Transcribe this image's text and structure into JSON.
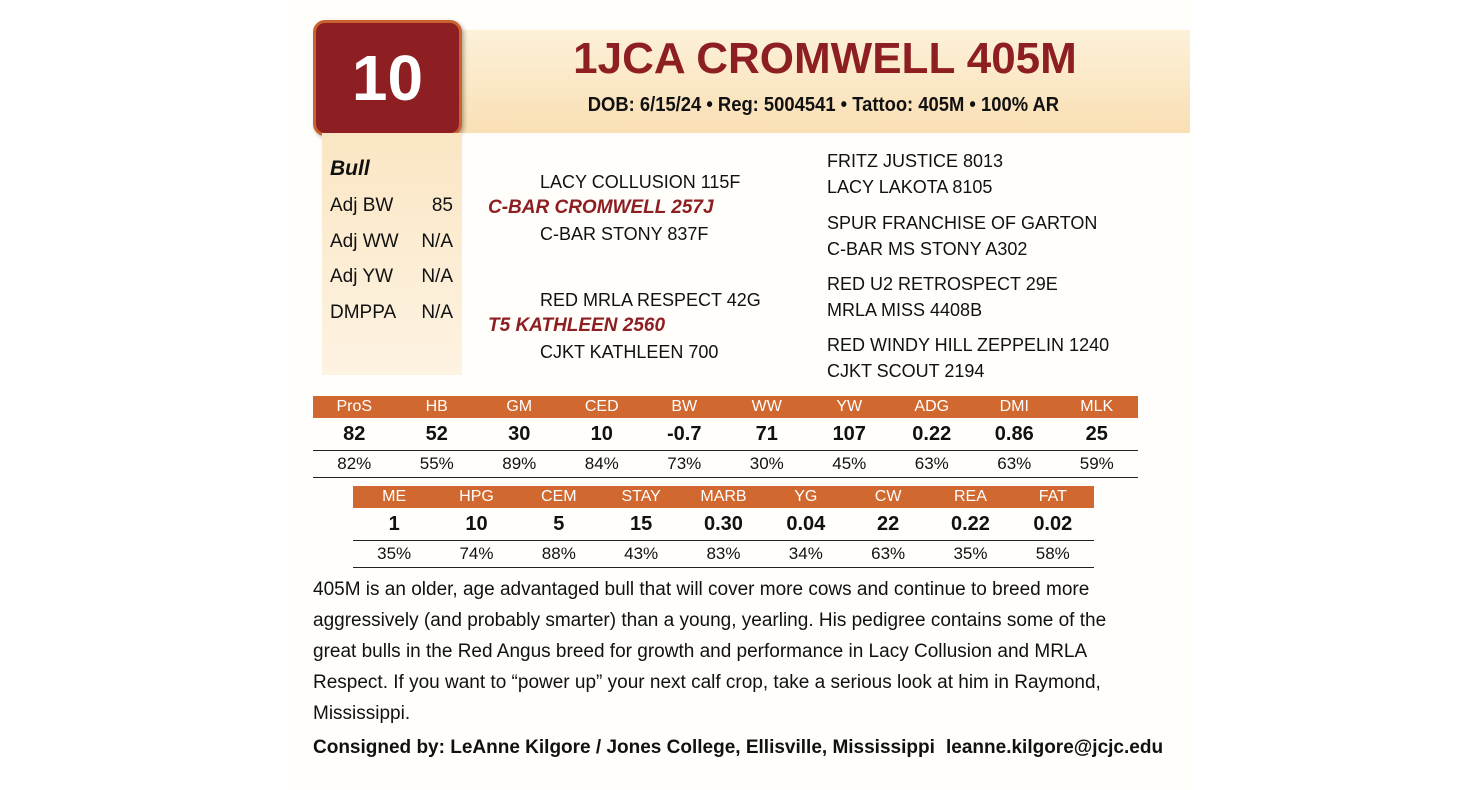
{
  "lot": "10",
  "name": "1JCA CROMWELL 405M",
  "info": "DOB: 6/15/24 • Reg: 5004541 • Tattoo: 405M • 100% AR",
  "stats": {
    "title": "Bull",
    "rows": [
      [
        "Adj BW",
        "85"
      ],
      [
        "Adj WW",
        "N/A"
      ],
      [
        "Adj YW",
        "N/A"
      ],
      [
        "DMPPA",
        "N/A"
      ]
    ]
  },
  "pedigree": {
    "sire": "C-BAR CROMWELL 257J",
    "sire_sire": "LACY COLLUSION 115F",
    "sire_dam": "C-BAR STONY 837F",
    "dam": "T5 KATHLEEN 2560",
    "dam_sire": "RED MRLA RESPECT 42G",
    "dam_dam": "CJKT KATHLEEN 700",
    "grand": [
      "FRITZ JUSTICE 8013",
      "LACY LAKOTA 8105",
      "SPUR FRANCHISE OF GARTON",
      "C-BAR MS STONY A302",
      "RED U2 RETROSPECT 29E",
      "MRLA MISS 4408B",
      "RED WINDY HILL ZEPPELIN 1240",
      "CJKT SCOUT 2194"
    ]
  },
  "epd_tables": [
    {
      "headers": [
        "ProS",
        "HB",
        "GM",
        "CED",
        "BW",
        "WW",
        "YW",
        "ADG",
        "DMI",
        "MLK"
      ],
      "values": [
        "82",
        "52",
        "30",
        "10",
        "-0.7",
        "71",
        "107",
        "0.22",
        "0.86",
        "25"
      ],
      "percentiles": [
        "82%",
        "55%",
        "89%",
        "84%",
        "73%",
        "30%",
        "45%",
        "63%",
        "63%",
        "59%"
      ]
    },
    {
      "headers": [
        "ME",
        "HPG",
        "CEM",
        "STAY",
        "MARB",
        "YG",
        "CW",
        "REA",
        "FAT"
      ],
      "values": [
        "1",
        "10",
        "5",
        "15",
        "0.30",
        "0.04",
        "22",
        "0.22",
        "0.02"
      ],
      "percentiles": [
        "35%",
        "74%",
        "88%",
        "43%",
        "83%",
        "34%",
        "63%",
        "35%",
        "58%"
      ]
    }
  ],
  "description": "405M is an older, age advantaged bull that will cover more cows and continue to breed more aggressively (and probably smarter) than a young, yearling.  His pedigree contains some of the great bulls in the Red Angus breed for growth and performance in Lacy Collusion and MRLA Respect.  If you want to “power up” your next calf crop, take a serious look at him in Raymond, Mississippi.",
  "consigner": "Consigned by: LeAnne Kilgore / Jones College, Ellisville, Mississippi",
  "email": "leanne.kilgore@jcjc.edu"
}
